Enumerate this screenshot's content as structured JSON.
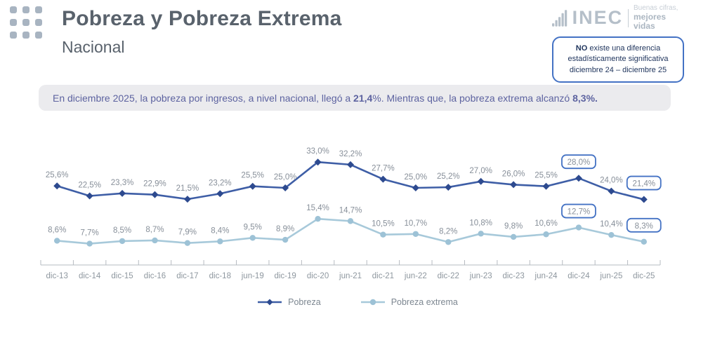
{
  "header": {
    "title": "Pobreza y Pobreza Extrema",
    "subtitle": "Nacional",
    "logo": {
      "name": "INEC",
      "tagline1": "Buenas cifras,",
      "tagline2": "mejores vidas"
    },
    "note": {
      "bold": "NO",
      "line1": " existe una diferencia",
      "line2": "estadísticamente significativa",
      "line3": "diciembre 24 – diciembre 25"
    }
  },
  "summary": {
    "pre": "En diciembre 2025, la pobreza por ingresos, a nivel nacional, llegó a ",
    "value1": "21,4",
    "mid": "%. Mientras que, la pobreza extrema alcanzó ",
    "value2": "8,3%."
  },
  "chart_data": {
    "type": "line",
    "title": "Pobreza y Pobreza Extrema - Nacional",
    "categories": [
      "dic-13",
      "dic-14",
      "dic-15",
      "dic-16",
      "dic-17",
      "dic-18",
      "jun-19",
      "dic-19",
      "dic-20",
      "jun-21",
      "dic-21",
      "jun-22",
      "dic-22",
      "jun-23",
      "dic-23",
      "jun-24",
      "dic-24",
      "jun-25",
      "dic-25"
    ],
    "series": [
      {
        "name": "Pobreza",
        "marker": "diamond",
        "color": "#3e5ea6",
        "marker_color": "#2d4a8f",
        "values": [
          25.6,
          22.5,
          23.3,
          22.9,
          21.5,
          23.2,
          25.5,
          25.0,
          33.0,
          32.2,
          27.7,
          25.0,
          25.2,
          27.0,
          26.0,
          25.5,
          28.0,
          24.0,
          21.4
        ],
        "labels": [
          "25,6%",
          "22,5%",
          "23,3%",
          "22,9%",
          "21,5%",
          "23,2%",
          "25,5%",
          "25,0%",
          "33,0%",
          "32,2%",
          "27,7%",
          "25,0%",
          "25,2%",
          "27,0%",
          "26,0%",
          "25,5%",
          "28,0%",
          "24,0%",
          "21,4%"
        ],
        "boxed_indices": [
          16,
          18
        ]
      },
      {
        "name": "Pobreza extrema",
        "marker": "circle",
        "color": "#a7c9da",
        "marker_color": "#9dc2d6",
        "values": [
          8.6,
          7.7,
          8.5,
          8.7,
          7.9,
          8.4,
          9.5,
          8.9,
          15.4,
          14.7,
          10.5,
          10.7,
          8.2,
          10.8,
          9.8,
          10.6,
          12.7,
          10.4,
          8.3
        ],
        "labels": [
          "8,6%",
          "7,7%",
          "8,5%",
          "8,7%",
          "7,9%",
          "8,4%",
          "9,5%",
          "8,9%",
          "15,4%",
          "14,7%",
          "10,5%",
          "10,7%",
          "8,2%",
          "10,8%",
          "9,8%",
          "10,6%",
          "12,7%",
          "10,4%",
          "8,3%"
        ],
        "boxed_indices": [
          16,
          18
        ]
      }
    ],
    "callout_border": "#4472c4",
    "legend_position": "bottom",
    "ylim": [
      0,
      40
    ],
    "grid": false,
    "unit": "%"
  },
  "colors": {
    "accent_border": "#4472c4",
    "title_text": "#59626c",
    "note_text": "#21365e",
    "summary_bg": "#ebebee",
    "summary_text": "#5d63a0",
    "axis_text": "#8e979f",
    "label_text": "#878f99",
    "logo_gray": "#b5bfc9",
    "dots_gray": "#a8b4c1"
  }
}
